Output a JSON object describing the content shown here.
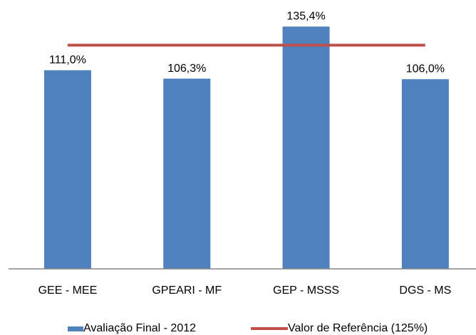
{
  "chart_data": {
    "type": "bar",
    "categories": [
      "GEE - MEE",
      "GPEARI - MF",
      "GEP - MSSS",
      "DGS - MS"
    ],
    "series": [
      {
        "name": "Avaliação Final - 2012",
        "color": "#4f81bd",
        "type": "bar",
        "values": [
          111.0,
          106.3,
          135.4,
          106.0
        ],
        "value_labels": [
          "111,0%",
          "106,3%",
          "135,4%",
          "106,0%"
        ]
      },
      {
        "name": "Valor de Referência (125%)",
        "color": "#c0504d",
        "type": "line",
        "values": [
          125,
          125,
          125,
          125
        ]
      }
    ],
    "ylim": [
      0,
      150
    ]
  }
}
